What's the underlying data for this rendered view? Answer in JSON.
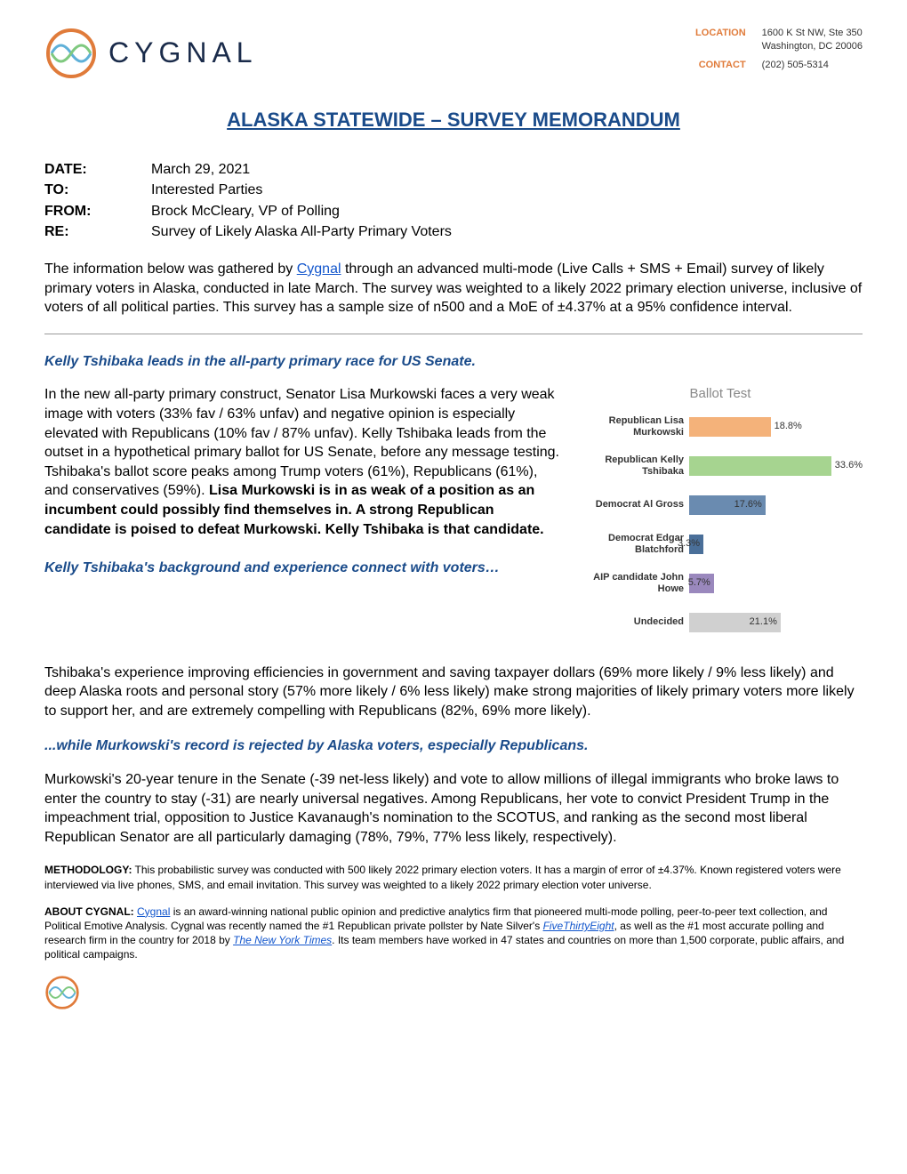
{
  "brand": {
    "name": "CYGNAL",
    "logo_colors": {
      "ring": "#e07b3a",
      "wave1": "#5fb0d8",
      "wave2": "#7fc97f"
    }
  },
  "contact": {
    "location_label": "LOCATION",
    "location_line1": "1600 K St NW, Ste 350",
    "location_line2": "Washington, DC 20006",
    "contact_label": "CONTACT",
    "phone": "(202) 505-5314"
  },
  "title": "ALASKA STATEWIDE – SURVEY MEMORANDUM",
  "meta": {
    "date_label": "DATE",
    "date": "March 29, 2021",
    "to_label": "TO",
    "to": "Interested Parties",
    "from_label": "FROM",
    "from": "Brock McCleary, VP of Polling",
    "re_label": "RE",
    "re": "Survey of Likely Alaska All-Party Primary Voters"
  },
  "intro": {
    "pre": "The information below was gathered by ",
    "link": "Cygnal",
    "post": " through an advanced multi-mode (Live Calls + SMS + Email) survey of likely primary voters in Alaska, conducted in late March. The survey was weighted to a likely 2022 primary election universe, inclusive of voters of all political parties. This survey has a sample size of n500 and a MoE of ±4.37% at a 95% confidence interval."
  },
  "section1": {
    "head": "Kelly Tshibaka leads in the all-party primary race for US Senate.",
    "body_pre": "In the new all-party primary construct, Senator Lisa Murkowski faces a very weak image with voters (33% fav / 63% unfav) and negative opinion is especially elevated with Republicans (10% fav / 87% unfav). Kelly Tshibaka leads from the outset in a hypothetical primary ballot for US Senate, before any message testing. Tshibaka's ballot score peaks among Trump voters (61%), Republicans (61%), and conservatives (59%). ",
    "body_bold": "Lisa Murkowski is in as weak of a position as an incumbent could possibly find themselves in. A strong Republican candidate is poised to defeat Murkowski. Kelly Tshibaka is that candidate."
  },
  "chart": {
    "title": "Ballot Test",
    "max": 40,
    "bars": [
      {
        "label": "Republican Lisa Murkowski",
        "value": 18.8,
        "text": "18.8%",
        "color": "#f4b27a",
        "text_inside": false
      },
      {
        "label": "Republican Kelly Tshibaka",
        "value": 33.6,
        "text": "33.6%",
        "color": "#a6d490",
        "text_inside": false
      },
      {
        "label": "Democrat Al Gross",
        "value": 17.6,
        "text": "17.6%",
        "color": "#6a8bb0",
        "text_inside": true
      },
      {
        "label": "Democrat Edgar Blatchford",
        "value": 3.3,
        "text": "3.3%",
        "color": "#4a6f99",
        "text_inside": true
      },
      {
        "label": "AIP candidate John Howe",
        "value": 5.7,
        "text": "5.7%",
        "color": "#9a88bd",
        "text_inside": true
      },
      {
        "label": "Undecided",
        "value": 21.1,
        "text": "21.1%",
        "color": "#d0d0d0",
        "text_inside": true
      }
    ]
  },
  "section2": {
    "head": "Kelly Tshibaka's background and experience connect with voters…",
    "body": "Tshibaka's experience improving efficiencies in government and saving taxpayer dollars (69% more likely / 9% less likely) and deep Alaska roots and personal story (57% more likely / 6% less likely) make strong majorities of likely primary voters more likely to support her, and are extremely compelling with Republicans (82%, 69% more likely)."
  },
  "section3": {
    "head": "...while Murkowski's record is rejected by Alaska voters, especially Republicans.",
    "body": "Murkowski's 20-year tenure in the Senate (-39 net-less likely) and vote to allow millions of illegal immigrants who broke laws to enter the country to stay (-31) are nearly universal negatives. Among Republicans, her vote to convict President Trump in the impeachment trial, opposition to Justice Kavanaugh's nomination to the SCOTUS, and ranking as the second most liberal Republican Senator are all particularly damaging (78%, 79%, 77% less likely, respectively)."
  },
  "methodology": {
    "label": "METHODOLOGY:",
    "text": " This probabilistic survey was conducted with 500 likely 2022 primary election voters. It has a margin of error of ±4.37%. Known registered voters were interviewed via live phones, SMS, and email invitation. This survey was weighted to a likely 2022 primary election voter universe."
  },
  "about": {
    "label": "ABOUT CYGNAL:",
    "pre": " ",
    "link1": "Cygnal",
    "mid1": " is an award-winning national public opinion and predictive analytics firm that pioneered multi-mode polling, peer-to-peer text collection, and Political Emotive Analysis. Cygnal was recently named the #1 Republican private pollster by Nate Silver's ",
    "link2": "FiveThirtyEight",
    "mid2": ", as well as the #1 most accurate polling and research firm in the country for 2018 by ",
    "link3": "The New York Times",
    "post": ". Its team members have worked in 47 states and countries on more than 1,500 corporate, public affairs, and political campaigns."
  }
}
